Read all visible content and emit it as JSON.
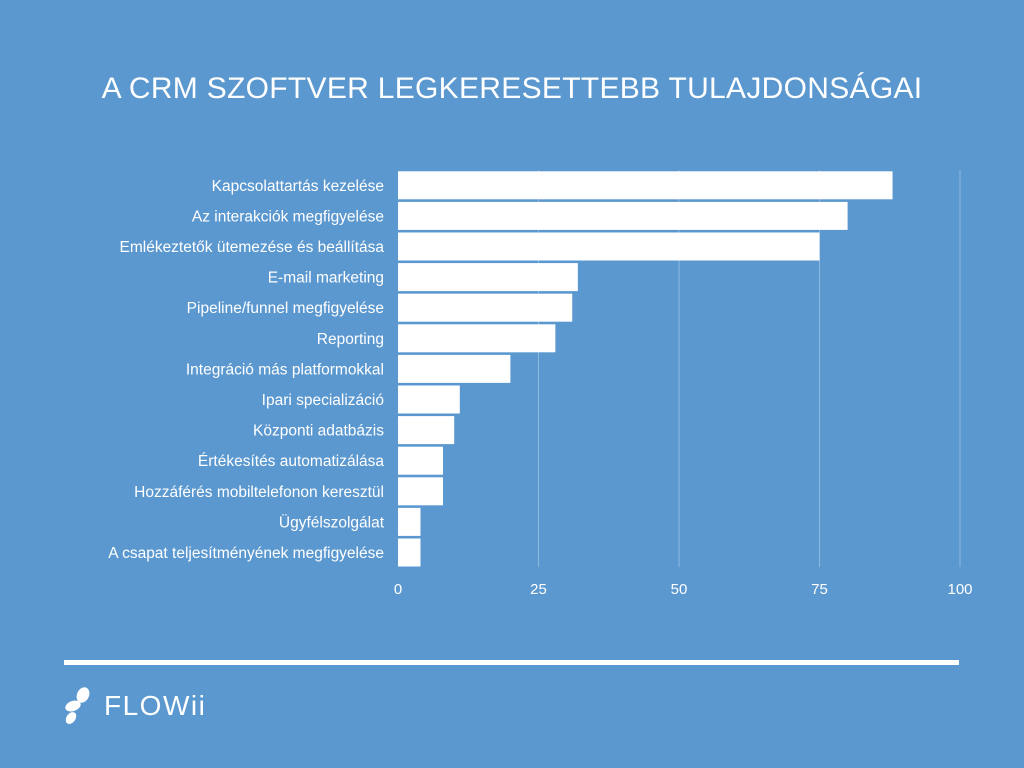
{
  "colors": {
    "background": "#5b98cf",
    "bar": "#ffffff",
    "gridline": "#8cb9e0",
    "text": "#ffffff"
  },
  "chart_data": {
    "type": "bar",
    "orientation": "horizontal",
    "title": "A CRM SZOFTVER LEGKERESETTEBB TULAJDONSÁGAI",
    "xlabel": "",
    "ylabel": "",
    "xlim": [
      0,
      100
    ],
    "xticks": [
      0,
      25,
      50,
      75,
      100
    ],
    "grid": true,
    "categories": [
      "Kapcsolattartás kezelése",
      "Az interakciók megfigyelése",
      "Emlékeztetők ütemezése és beállítása",
      "E-mail marketing",
      "Pipeline/funnel megfigyelése",
      "Reporting",
      "Integráció más platformokkal",
      "Ipari specializáció",
      "Központi adatbázis",
      "Értékesítés automatizálása",
      "Hozzáférés mobiltelefonon keresztül",
      "Ügyfélszolgálat",
      "A csapat teljesítményének megfigyelése"
    ],
    "values": [
      88,
      80,
      75,
      32,
      31,
      28,
      20,
      11,
      10,
      8,
      8,
      4,
      4
    ]
  },
  "footer": {
    "brand": "FLOWii",
    "logo_icon": "flowii-droplets-logo-icon"
  }
}
